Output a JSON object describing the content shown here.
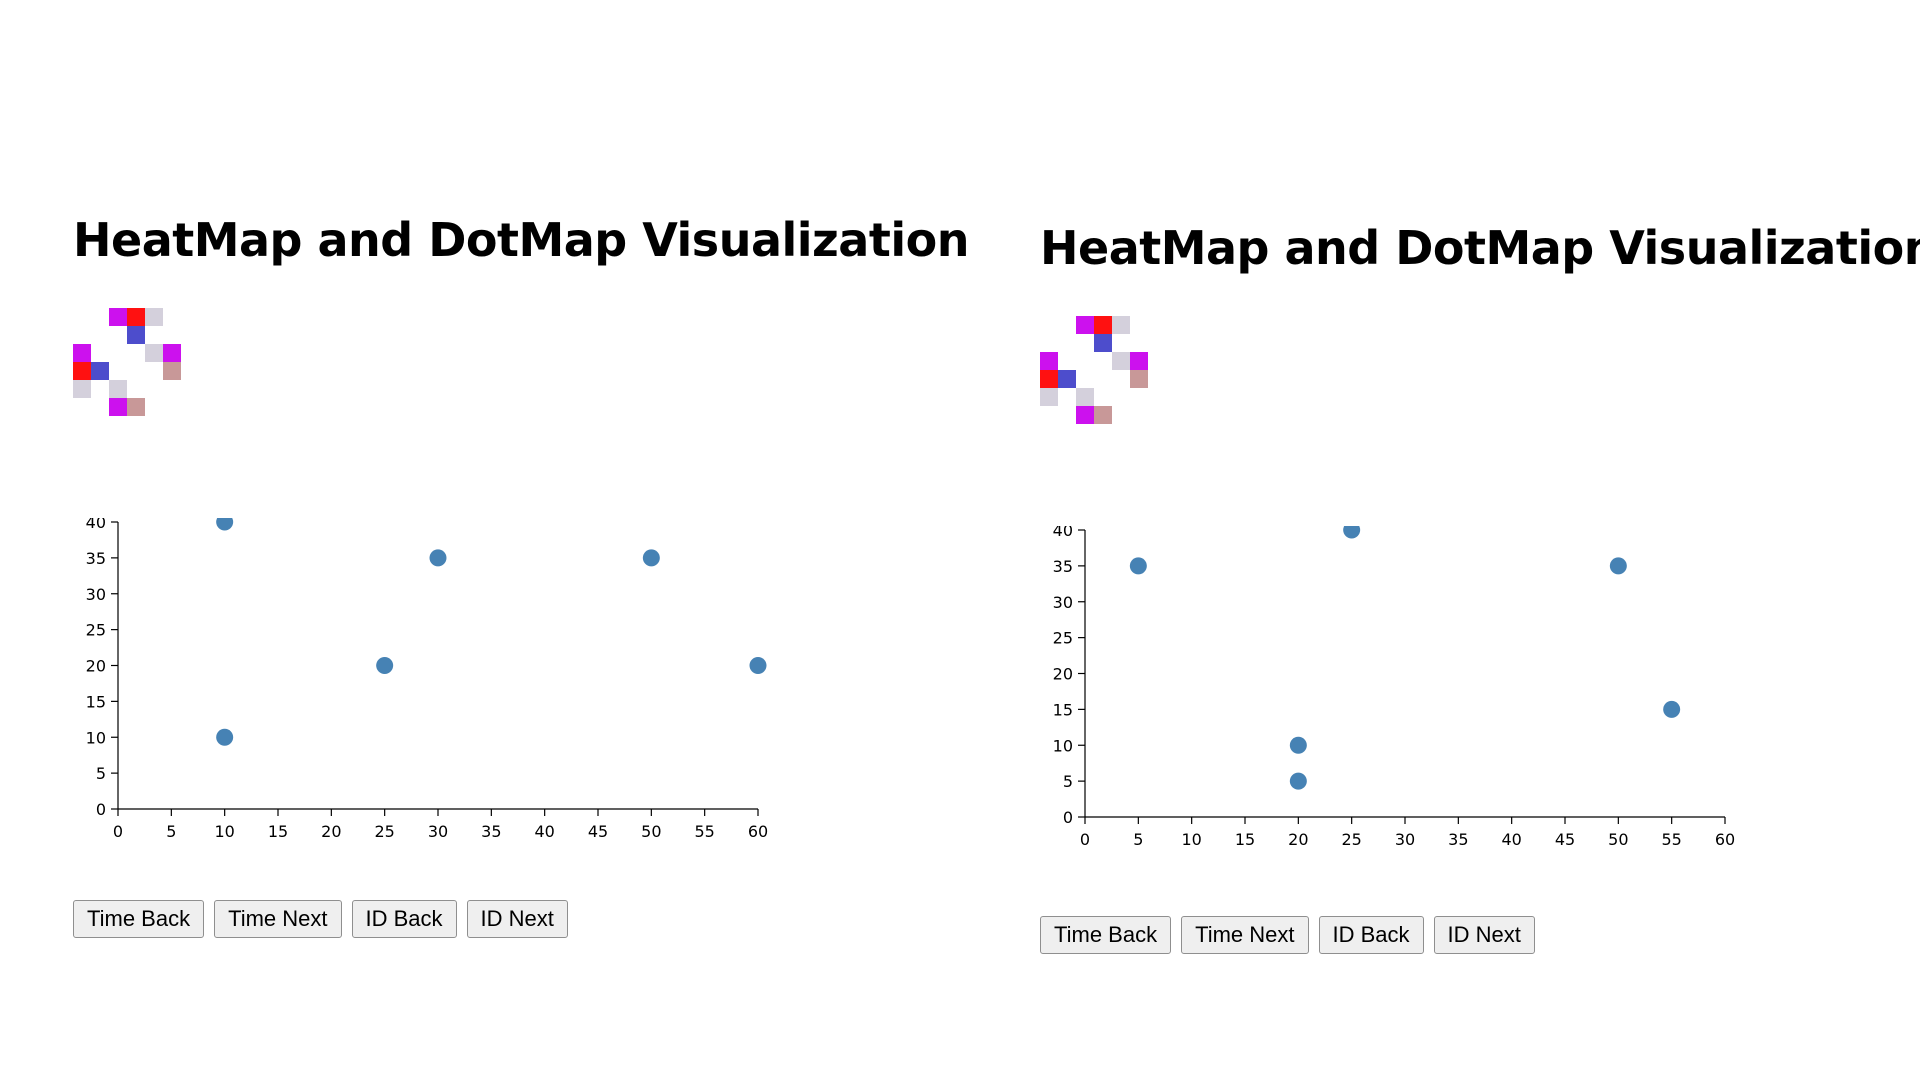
{
  "panels": [
    {
      "title": "HeatMap and DotMap Visualization",
      "heatmap_cells": [
        {
          "col": 2,
          "row": 0,
          "color": "#cc11ee"
        },
        {
          "col": 3,
          "row": 0,
          "color": "#ff1111"
        },
        {
          "col": 4,
          "row": 0,
          "color": "#d4d0dc"
        },
        {
          "col": 3,
          "row": 1,
          "color": "#4d4dcc"
        },
        {
          "col": 0,
          "row": 2,
          "color": "#cc11ee"
        },
        {
          "col": 4,
          "row": 2,
          "color": "#d4d0dc"
        },
        {
          "col": 5,
          "row": 2,
          "color": "#cc11ee"
        },
        {
          "col": 0,
          "row": 3,
          "color": "#ff1111"
        },
        {
          "col": 1,
          "row": 3,
          "color": "#4d4dcc"
        },
        {
          "col": 5,
          "row": 3,
          "color": "#c89898"
        },
        {
          "col": 0,
          "row": 4,
          "color": "#d4d0dc"
        },
        {
          "col": 2,
          "row": 4,
          "color": "#d4d0dc"
        },
        {
          "col": 2,
          "row": 5,
          "color": "#cc11ee"
        },
        {
          "col": 3,
          "row": 5,
          "color": "#c89898"
        }
      ],
      "buttons": {
        "time_back": "Time Back",
        "time_next": "Time Next",
        "id_back": "ID Back",
        "id_next": "ID Next"
      }
    },
    {
      "title": "HeatMap and DotMap Visualization",
      "heatmap_cells": [
        {
          "col": 2,
          "row": 0,
          "color": "#cc11ee"
        },
        {
          "col": 3,
          "row": 0,
          "color": "#ff1111"
        },
        {
          "col": 4,
          "row": 0,
          "color": "#d4d0dc"
        },
        {
          "col": 3,
          "row": 1,
          "color": "#4d4dcc"
        },
        {
          "col": 0,
          "row": 2,
          "color": "#cc11ee"
        },
        {
          "col": 4,
          "row": 2,
          "color": "#d4d0dc"
        },
        {
          "col": 5,
          "row": 2,
          "color": "#cc11ee"
        },
        {
          "col": 0,
          "row": 3,
          "color": "#ff1111"
        },
        {
          "col": 1,
          "row": 3,
          "color": "#4d4dcc"
        },
        {
          "col": 5,
          "row": 3,
          "color": "#c89898"
        },
        {
          "col": 0,
          "row": 4,
          "color": "#d4d0dc"
        },
        {
          "col": 2,
          "row": 4,
          "color": "#d4d0dc"
        },
        {
          "col": 2,
          "row": 5,
          "color": "#cc11ee"
        },
        {
          "col": 3,
          "row": 5,
          "color": "#c89898"
        }
      ],
      "buttons": {
        "time_back": "Time Back",
        "time_next": "Time Next",
        "id_back": "ID Back",
        "id_next": "ID Next"
      }
    }
  ],
  "chart_data": [
    {
      "type": "scatter",
      "title": "",
      "xlabel": "",
      "ylabel": "",
      "xlim": [
        0,
        60
      ],
      "ylim": [
        0,
        40
      ],
      "x_ticks": [
        0,
        5,
        10,
        15,
        20,
        25,
        30,
        35,
        40,
        45,
        50,
        55,
        60
      ],
      "y_ticks": [
        0,
        5,
        10,
        15,
        20,
        25,
        30,
        35,
        40
      ],
      "grid": false,
      "point_color": "#4682b4",
      "points": [
        {
          "x": 10,
          "y": 40
        },
        {
          "x": 10,
          "y": 10
        },
        {
          "x": 25,
          "y": 20
        },
        {
          "x": 30,
          "y": 35
        },
        {
          "x": 50,
          "y": 35
        },
        {
          "x": 60,
          "y": 20
        }
      ]
    },
    {
      "type": "scatter",
      "title": "",
      "xlabel": "",
      "ylabel": "",
      "xlim": [
        0,
        60
      ],
      "ylim": [
        0,
        40
      ],
      "x_ticks": [
        0,
        5,
        10,
        15,
        20,
        25,
        30,
        35,
        40,
        45,
        50,
        55,
        60
      ],
      "y_ticks": [
        0,
        5,
        10,
        15,
        20,
        25,
        30,
        35,
        40
      ],
      "grid": false,
      "point_color": "#4682b4",
      "points": [
        {
          "x": 5,
          "y": 35
        },
        {
          "x": 25,
          "y": 40
        },
        {
          "x": 20,
          "y": 10
        },
        {
          "x": 20,
          "y": 5
        },
        {
          "x": 50,
          "y": 35
        },
        {
          "x": 55,
          "y": 15
        }
      ]
    }
  ]
}
